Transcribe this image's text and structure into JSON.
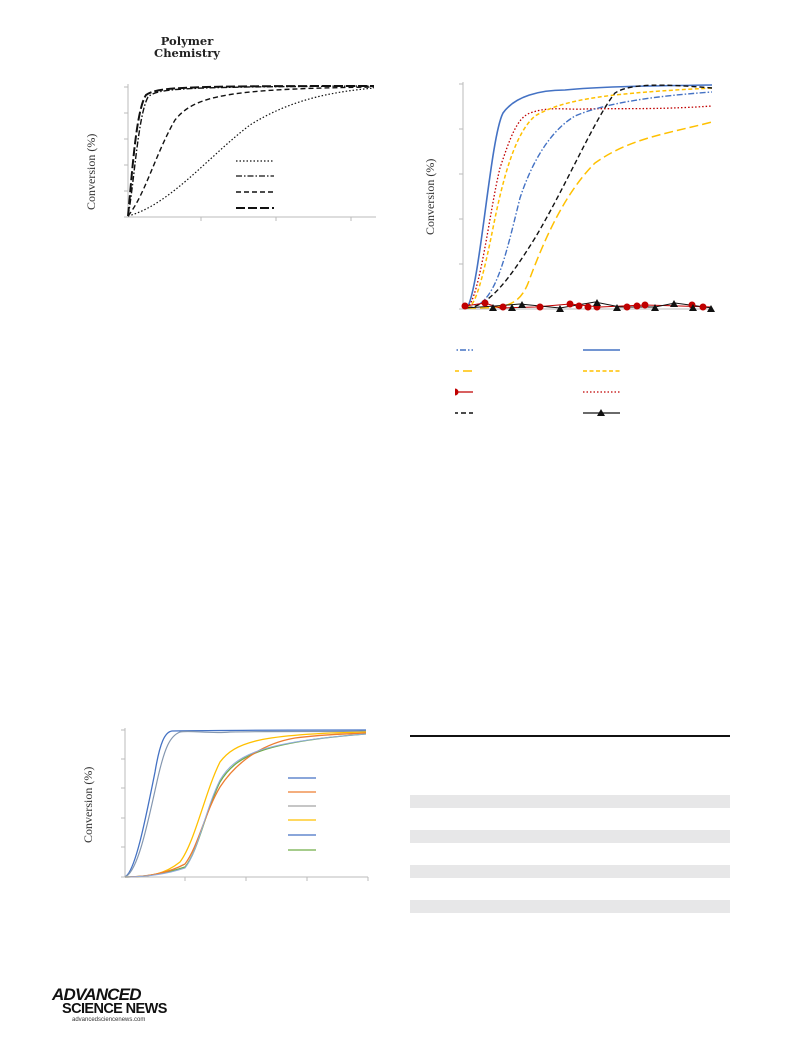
{
  "header": {
    "journal": "Polymer Chemistry"
  },
  "figures": {
    "fig1": {
      "ylabel": "Conversion (%)"
    },
    "fig2": {
      "ylabel": "Conversion (%)"
    },
    "fig3": {
      "ylabel": "Conversion (%)"
    }
  },
  "table": {
    "shaded_rows": 4,
    "shade_color": "#e7e7e8"
  },
  "footer": {
    "logo_line1": "ADVANCED",
    "logo_line2": "SCIENCE NEWS",
    "logo_url": "advancedsciencenews.com"
  },
  "colors": {
    "blue": "#4472c4",
    "orange": "#ffc000",
    "red": "#c00000",
    "black": "#000000",
    "green": "#70ad47",
    "orange2": "#ed7d31",
    "grey": "#a5a5a5"
  }
}
